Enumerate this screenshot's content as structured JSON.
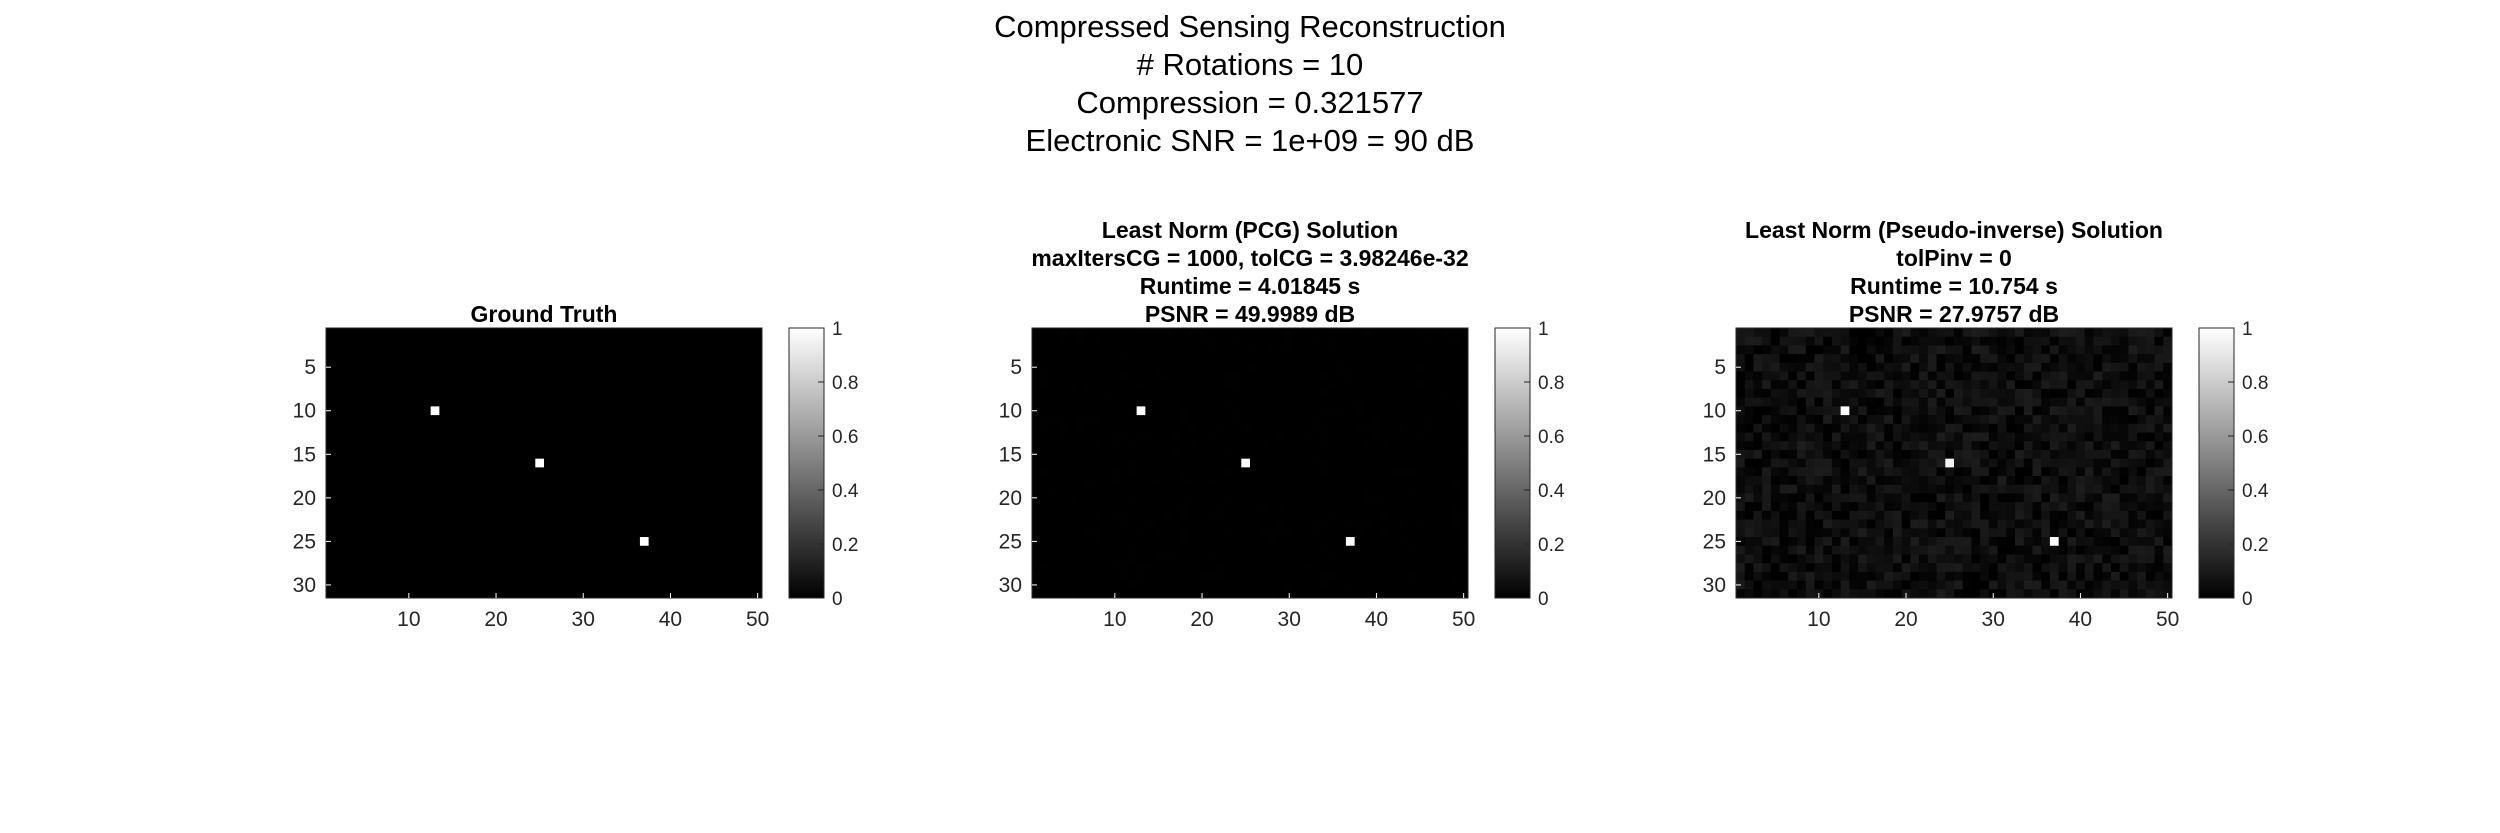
{
  "figure": {
    "title_lines": [
      "Compressed Sensing Reconstruction",
      "# Rotations = 10",
      "Compression = 0.321577",
      "Electronic SNR = 1e+09 = 90 dB"
    ]
  },
  "colormap": {
    "name": "gray",
    "low": "#000000",
    "high": "#ffffff"
  },
  "chart_data": [
    {
      "type": "heatmap",
      "title_lines": [
        "Ground Truth"
      ],
      "x_range": [
        1,
        50
      ],
      "y_range": [
        1,
        31
      ],
      "y_reversed": true,
      "xticks": [
        10,
        20,
        30,
        40,
        50
      ],
      "yticks": [
        5,
        10,
        15,
        20,
        25,
        30
      ],
      "background_value": 0,
      "noise_level": 0,
      "bright_pixels": [
        {
          "x": 13,
          "y": 10,
          "value": 1
        },
        {
          "x": 25,
          "y": 16,
          "value": 1
        },
        {
          "x": 37,
          "y": 25,
          "value": 1
        }
      ],
      "colorbar": {
        "ticks": [
          0,
          0.2,
          0.4,
          0.6,
          0.8,
          1
        ],
        "range": [
          0,
          1
        ]
      }
    },
    {
      "type": "heatmap",
      "title_lines": [
        "Least Norm (PCG) Solution",
        "maxItersCG = 1000, tolCG = 3.98246e-32",
        "Runtime = 4.01845 s",
        "PSNR = 49.9989 dB"
      ],
      "x_range": [
        1,
        50
      ],
      "y_range": [
        1,
        31
      ],
      "y_reversed": true,
      "xticks": [
        10,
        20,
        30,
        40,
        50
      ],
      "yticks": [
        5,
        10,
        15,
        20,
        25,
        30
      ],
      "background_value": 0,
      "noise_level": 0.004,
      "bright_pixels": [
        {
          "x": 13,
          "y": 10,
          "value": 1
        },
        {
          "x": 25,
          "y": 16,
          "value": 1
        },
        {
          "x": 37,
          "y": 25,
          "value": 1
        }
      ],
      "colorbar": {
        "ticks": [
          0,
          0.2,
          0.4,
          0.6,
          0.8,
          1
        ],
        "range": [
          0,
          1
        ]
      }
    },
    {
      "type": "heatmap",
      "title_lines": [
        "Least Norm (Pseudo-inverse) Solution",
        "tolPinv = 0",
        "Runtime = 10.754 s",
        "PSNR = 27.9757 dB"
      ],
      "x_range": [
        1,
        50
      ],
      "y_range": [
        1,
        31
      ],
      "y_reversed": true,
      "xticks": [
        10,
        20,
        30,
        40,
        50
      ],
      "yticks": [
        5,
        10,
        15,
        20,
        25,
        30
      ],
      "background_value": 0.05,
      "noise_level": 0.06,
      "bright_pixels": [
        {
          "x": 13,
          "y": 10,
          "value": 1
        },
        {
          "x": 25,
          "y": 16,
          "value": 0.95
        },
        {
          "x": 37,
          "y": 25,
          "value": 1
        }
      ],
      "colorbar": {
        "ticks": [
          0,
          0.2,
          0.4,
          0.6,
          0.8,
          1
        ],
        "range": [
          0,
          1
        ]
      }
    }
  ]
}
